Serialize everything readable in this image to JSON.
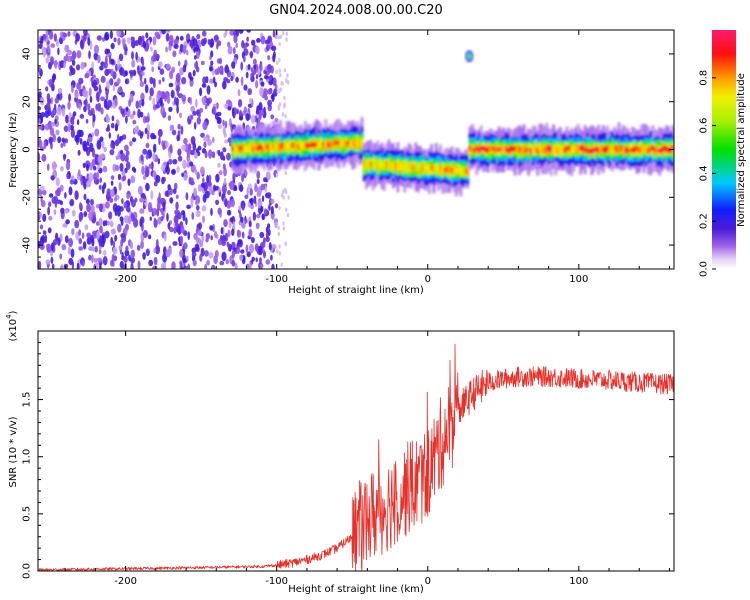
{
  "title": "GN04.2024.008.00.00.C20",
  "colors": {
    "snr_line": "#e8302a",
    "axis": "#000000"
  },
  "chart_data": [
    {
      "type": "heatmap",
      "xlabel": "Height of straight line (km)",
      "ylabel": "Frequency (Hz)",
      "xlim": [
        -258,
        163
      ],
      "ylim": [
        -50,
        50
      ],
      "x_ticks": [
        -200,
        -100,
        0,
        100
      ],
      "x_tick_labels": [
        "-200",
        "-100",
        "0",
        "100"
      ],
      "y_ticks": [
        -40,
        -20,
        0,
        20,
        40
      ],
      "y_tick_labels": [
        "-40",
        "-20",
        "0",
        "20",
        "40"
      ],
      "grid": false,
      "colorbar": {
        "label": "Normalized spectral amplitude",
        "range": [
          0,
          1
        ],
        "ticks": [
          0.0,
          0.2,
          0.4,
          0.6,
          0.8
        ],
        "tick_labels": [
          "0.0",
          "0.2",
          "0.4",
          "0.6",
          "0.8"
        ]
      },
      "features": [
        {
          "x_range": [
            -258,
            -100
          ],
          "freq_range": [
            -50,
            50
          ],
          "amplitude": 0.15
        },
        {
          "x_range": [
            -130,
            -43
          ],
          "freq_center": [
            0,
            3
          ],
          "amplitude": 0.8
        },
        {
          "x_range": [
            -43,
            27
          ],
          "freq_center": [
            -6,
            -9
          ],
          "amplitude": 0.75
        },
        {
          "x_range": [
            27,
            163
          ],
          "freq_center": [
            0,
            0
          ],
          "amplitude": 0.85
        },
        {
          "x_range": [
            25,
            30
          ],
          "freq_center": [
            39,
            39
          ],
          "amplitude": 0.6
        }
      ]
    },
    {
      "type": "line",
      "xlabel": "Height of straight line (km)",
      "ylabel": "SNR (10 * v/v)",
      "y_multiplier": "(x10",
      "y_multiplier_exp": "4",
      "y_multiplier_close": ")",
      "xlim": [
        -258,
        163
      ],
      "ylim": [
        0,
        2.1
      ],
      "x_ticks": [
        -200,
        -100,
        0,
        100
      ],
      "x_tick_labels": [
        "-200",
        "-100",
        "0",
        "100"
      ],
      "y_ticks": [
        0.0,
        0.5,
        1.0,
        1.5
      ],
      "y_tick_labels": [
        "0.0",
        "0.5",
        "1.0",
        "1.5"
      ],
      "grid": false,
      "series": [
        {
          "x": [
            -258,
            -200,
            -150,
            -110,
            -100,
            -90,
            -80,
            -70,
            -60,
            -50,
            -40,
            -30,
            -20,
            -10,
            0,
            10,
            20,
            30,
            40,
            50,
            60,
            80,
            100,
            120,
            140,
            163
          ],
          "values": [
            0.01,
            0.02,
            0.03,
            0.04,
            0.05,
            0.07,
            0.1,
            0.14,
            0.2,
            0.3,
            0.45,
            0.55,
            0.65,
            0.75,
            0.85,
            1.15,
            1.4,
            1.55,
            1.65,
            1.68,
            1.7,
            1.7,
            1.68,
            1.67,
            1.65,
            1.63
          ]
        }
      ]
    }
  ]
}
